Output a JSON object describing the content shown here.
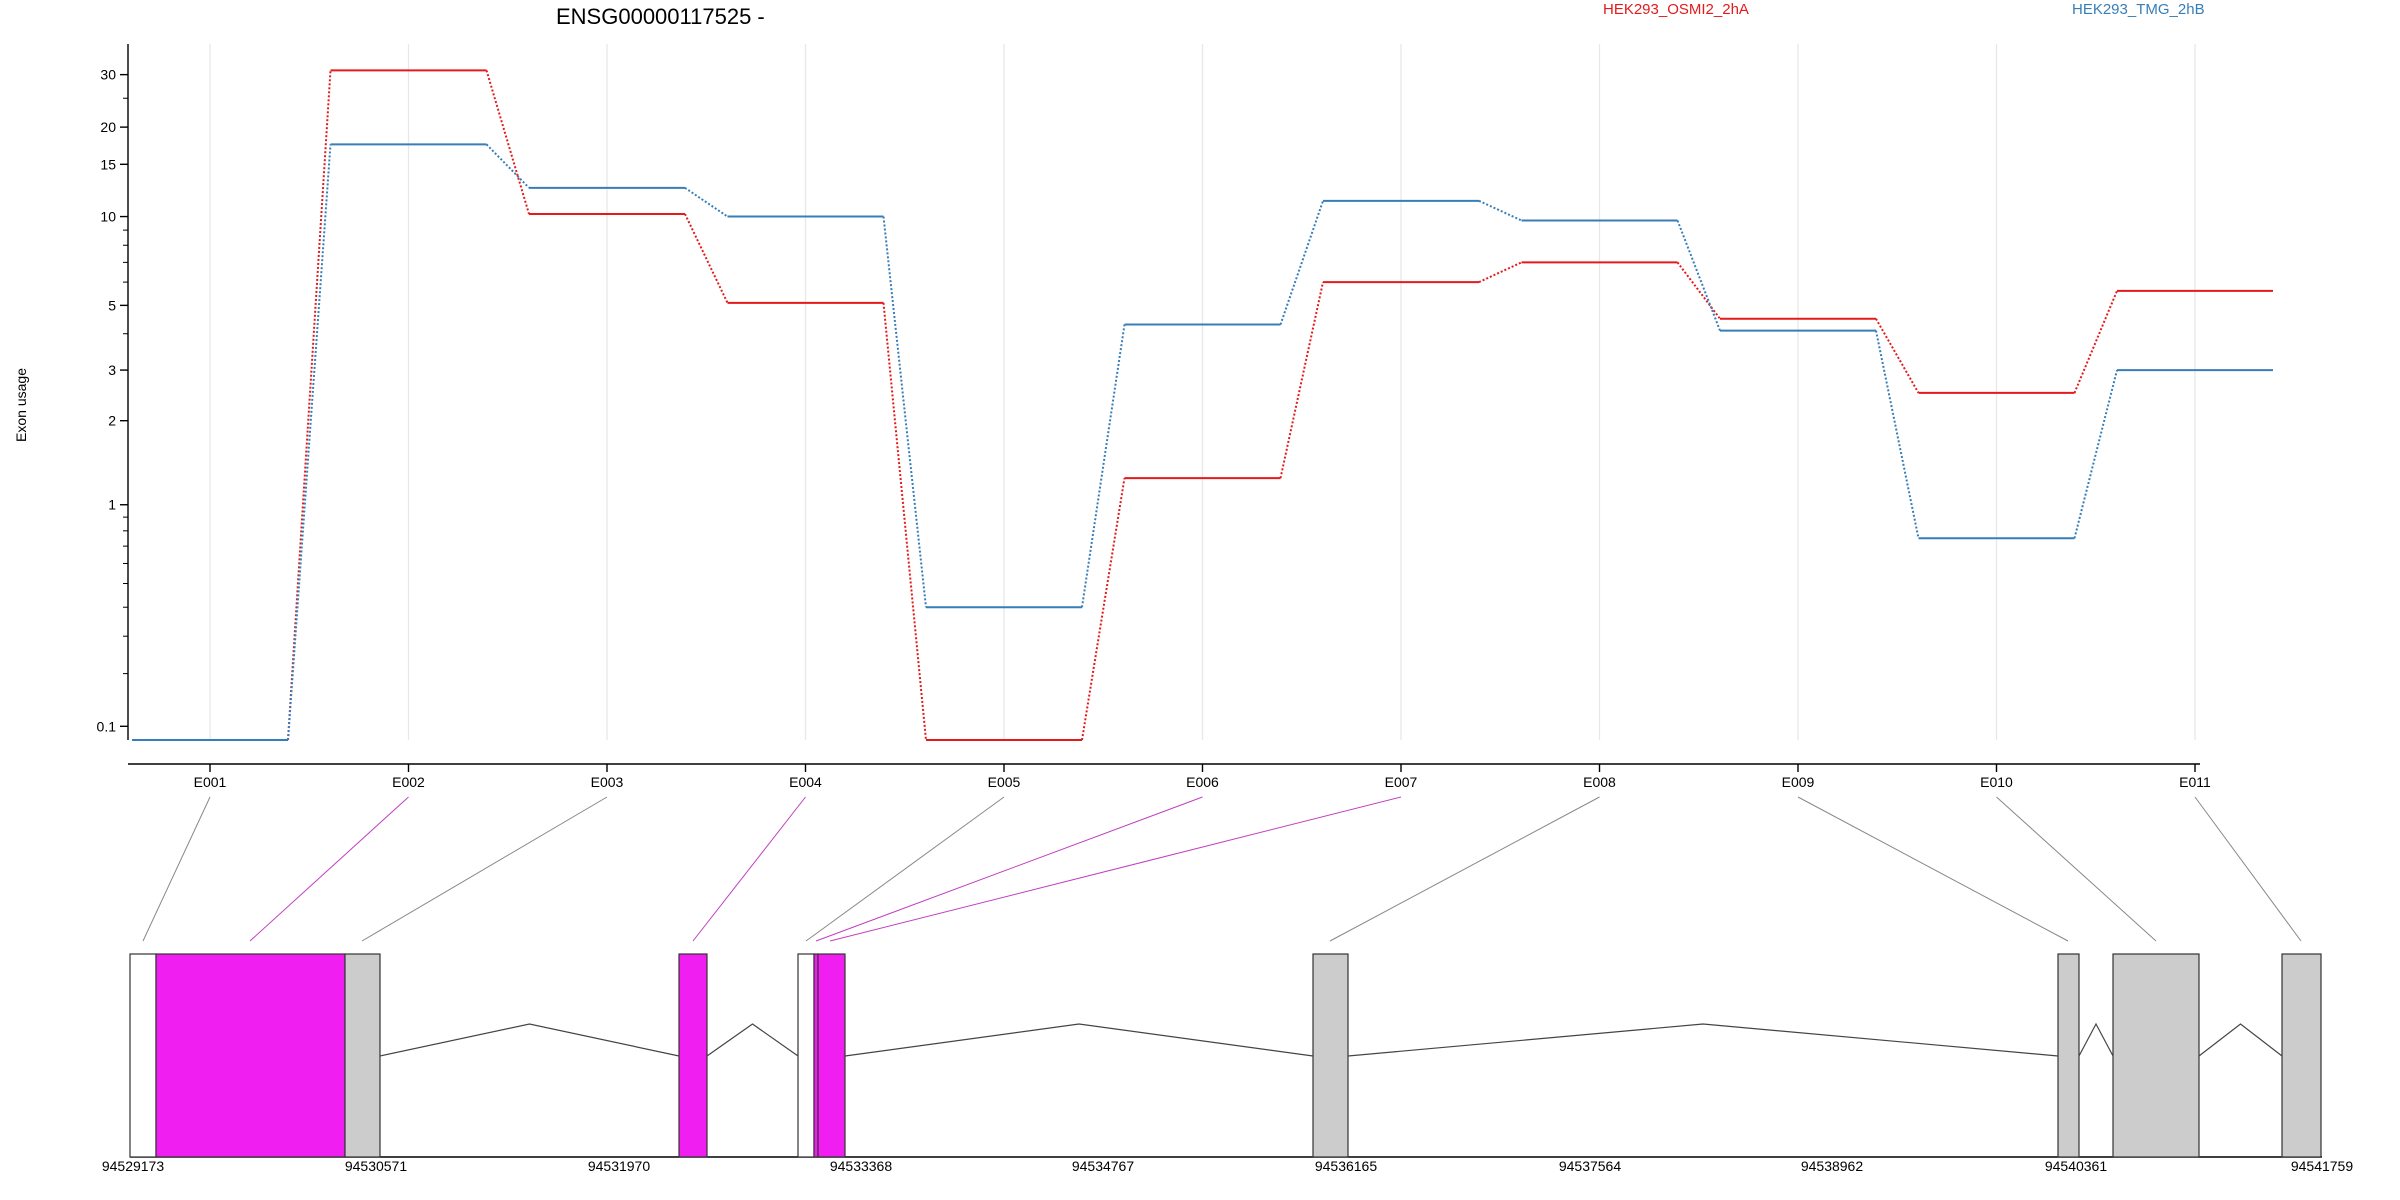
{
  "chart_data": {
    "type": "line",
    "title": "ENSG00000117525 -",
    "ylabel": "Exon usage",
    "xlabel": "",
    "y_scale": "log (offset)",
    "ylim": [
      0.08,
      38
    ],
    "y_ticks": [
      0.1,
      1,
      2,
      3,
      5,
      10,
      15,
      20,
      30
    ],
    "y_tick_labels": [
      "0.1",
      "1",
      "2",
      "3",
      "5",
      "10",
      "15",
      "20",
      "30"
    ],
    "categories": [
      "E001",
      "E002",
      "E003",
      "E004",
      "E005",
      "E006",
      "E007",
      "E008",
      "E009",
      "E010",
      "E011"
    ],
    "grid": "vertical",
    "legend_position": "top-right",
    "series": [
      {
        "name": "HEK293_OSMI2_2hA",
        "color": "#e41a1c",
        "values": [
          0.08,
          31,
          10.2,
          5.1,
          0.08,
          1.25,
          6.0,
          7.0,
          4.5,
          2.5,
          5.6
        ]
      },
      {
        "name": "HEK293_TMG_2hB",
        "color": "#377eb8",
        "values": [
          0.08,
          17.5,
          12.5,
          10.0,
          0.4,
          4.3,
          11.3,
          9.7,
          4.1,
          0.75,
          3.0
        ]
      }
    ],
    "gene_model": {
      "coordinate_labels": [
        "94529173",
        "94530571",
        "94531970",
        "94533368",
        "94534767",
        "94536165",
        "94537564",
        "94538962",
        "94540361",
        "94541759"
      ],
      "highlight_color": "#f01ef0",
      "exon_color": "#cccccc",
      "highlighted_exons": [
        "E002",
        "E004",
        "E006",
        "E007"
      ]
    }
  }
}
